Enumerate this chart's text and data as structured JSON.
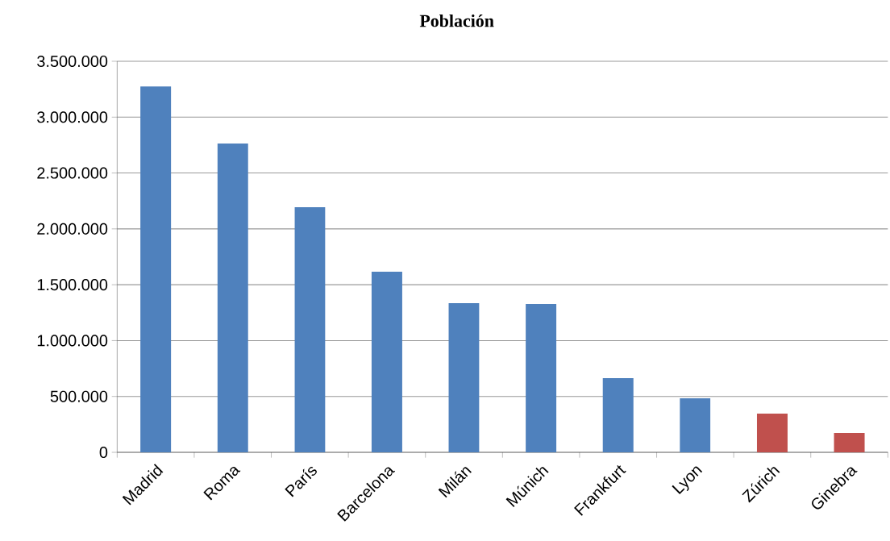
{
  "chart_data": {
    "type": "bar",
    "title": "Población",
    "categories": [
      "Madrid",
      "Roma",
      "París",
      "Barcelona",
      "Milán",
      "Múnich",
      "Frankfurt",
      "Lyon",
      "Zúrich",
      "Ginebra"
    ],
    "values": [
      3275000,
      2764000,
      2194000,
      1616000,
      1335000,
      1328000,
      664000,
      484000,
      346000,
      173000
    ],
    "colors": [
      "#4f81bd",
      "#4f81bd",
      "#4f81bd",
      "#4f81bd",
      "#4f81bd",
      "#4f81bd",
      "#4f81bd",
      "#4f81bd",
      "#c0504d",
      "#c0504d"
    ],
    "ylim": [
      0,
      3500000
    ],
    "yticks": [
      0,
      {
        "value": 500000,
        "label": "500.000"
      },
      {
        "value": 1000000,
        "label": "1.000.000"
      },
      {
        "value": 1500000,
        "label": "1.500.000"
      },
      {
        "value": 2000000,
        "label": "2.000.000"
      },
      {
        "value": 2500000,
        "label": "2.500.000"
      },
      {
        "value": 3000000,
        "label": "3.000.000"
      },
      {
        "value": 3500000,
        "label": "3.500.000"
      }
    ],
    "grid": "y"
  }
}
